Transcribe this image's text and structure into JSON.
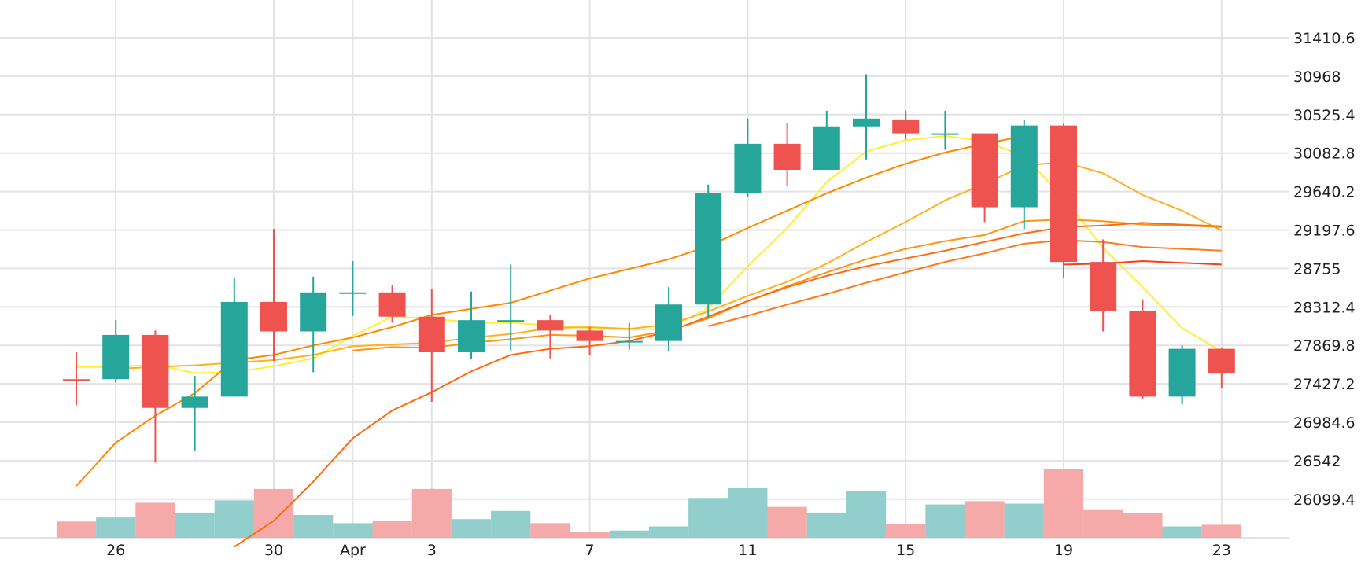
{
  "chart_data": {
    "type": "candlestick",
    "x": [
      "Mar 25",
      "Mar 26",
      "Mar 27",
      "Mar 28",
      "Mar 29",
      "Mar 30",
      "Mar 31",
      "Apr 1",
      "Apr 2",
      "Apr 3",
      "Apr 4",
      "Apr 5",
      "Apr 6",
      "Apr 7",
      "Apr 8",
      "Apr 9",
      "Apr 10",
      "Apr 11",
      "Apr 12",
      "Apr 13",
      "Apr 14",
      "Apr 15",
      "Apr 16",
      "Apr 17",
      "Apr 18",
      "Apr 19",
      "Apr 20",
      "Apr 21",
      "Apr 22",
      "Apr 23"
    ],
    "ohlc": [
      [
        27480,
        27790,
        27180,
        27470
      ],
      [
        27480,
        28160,
        27440,
        27990
      ],
      [
        27990,
        28040,
        26520,
        27150
      ],
      [
        27150,
        27520,
        26650,
        27280
      ],
      [
        27280,
        28640,
        27280,
        28370
      ],
      [
        28370,
        29210,
        27690,
        28030
      ],
      [
        28030,
        28660,
        27560,
        28480
      ],
      [
        28480,
        28840,
        28210,
        28480
      ],
      [
        28480,
        28560,
        28130,
        28200
      ],
      [
        28200,
        28520,
        27220,
        27790
      ],
      [
        27790,
        28490,
        27710,
        28160
      ],
      [
        28160,
        28800,
        27810,
        28160
      ],
      [
        28160,
        28220,
        27720,
        28040
      ],
      [
        28040,
        28080,
        27760,
        27920
      ],
      [
        27920,
        28130,
        27820,
        27920
      ],
      [
        27920,
        28540,
        27800,
        28340
      ],
      [
        28340,
        29720,
        28190,
        29620
      ],
      [
        29620,
        30480,
        29580,
        30190
      ],
      [
        30190,
        30430,
        29700,
        29890
      ],
      [
        29890,
        30570,
        29890,
        30390
      ],
      [
        30390,
        30990,
        30010,
        30480
      ],
      [
        30470,
        30570,
        30240,
        30310
      ],
      [
        30300,
        30570,
        30120,
        30310
      ],
      [
        30310,
        30310,
        29290,
        29460
      ],
      [
        29460,
        30470,
        29210,
        30400
      ],
      [
        30400,
        30420,
        28650,
        28830
      ],
      [
        28830,
        29090,
        28030,
        28270
      ],
      [
        28270,
        28400,
        27250,
        27280
      ],
      [
        27280,
        27870,
        27190,
        27830
      ],
      [
        27830,
        27840,
        27380,
        27550
      ]
    ],
    "volume": [
      20,
      25,
      43,
      31,
      46,
      60,
      28,
      18,
      21,
      60,
      23,
      33,
      18,
      7,
      9,
      14,
      49,
      61,
      38,
      31,
      57,
      17,
      41,
      45,
      42,
      85,
      35,
      30,
      14,
      16
    ],
    "moving_averages": [
      {
        "color": "#ffee33",
        "values": [
          27620,
          27620,
          27650,
          27550,
          27560,
          27630,
          27720,
          27980,
          28200,
          28180,
          28130,
          28130,
          28100,
          28070,
          28050,
          28060,
          28300,
          28780,
          29220,
          29750,
          30100,
          30230,
          30280,
          30220,
          30050,
          29570,
          28990,
          28540,
          28070,
          27800
        ]
      },
      {
        "color": "#ffb21e",
        "values": [
          null,
          27600,
          27620,
          27640,
          27670,
          27700,
          27760,
          27860,
          27880,
          27900,
          27960,
          28000,
          28070,
          28080,
          28060,
          28110,
          28260,
          28440,
          28600,
          28810,
          29060,
          29290,
          29540,
          29730,
          29940,
          29980,
          29850,
          29600,
          29420,
          29190
        ]
      },
      {
        "color": "#ff9514",
        "values": [
          null,
          null,
          null,
          null,
          null,
          null,
          null,
          27810,
          27850,
          27840,
          27900,
          27940,
          27990,
          27980,
          27960,
          28040,
          28180,
          28380,
          28550,
          28710,
          28860,
          28980,
          29070,
          29140,
          29300,
          29320,
          29300,
          29260,
          29250,
          29230
        ]
      },
      {
        "color": "#ff7b1b",
        "values": [
          null,
          null,
          null,
          null,
          null,
          null,
          null,
          null,
          null,
          null,
          null,
          null,
          null,
          null,
          null,
          null,
          28090,
          28210,
          28340,
          28460,
          28590,
          28710,
          28830,
          28930,
          29040,
          29080,
          29060,
          29000,
          28980,
          28960
        ]
      },
      {
        "color": "#ff3d15",
        "values": [
          null,
          null,
          null,
          null,
          null,
          null,
          null,
          null,
          null,
          null,
          null,
          null,
          null,
          null,
          null,
          null,
          null,
          null,
          null,
          null,
          null,
          null,
          null,
          null,
          null,
          28800,
          28810,
          28840,
          28820,
          28800
        ]
      },
      {
        "color": "#ff8a00",
        "values": [
          26250,
          26750,
          27060,
          27320,
          27700,
          27760,
          27870,
          27960,
          28080,
          28220,
          28290,
          28360,
          28500,
          28640,
          28750,
          28860,
          29010,
          29220,
          29420,
          29620,
          29800,
          29960,
          30090,
          30190,
          30280,
          null,
          null,
          null,
          null,
          null
        ]
      },
      {
        "color": "#ff6a10",
        "values": [
          null,
          null,
          null,
          null,
          25550,
          25850,
          26300,
          26800,
          27120,
          27330,
          27570,
          27760,
          27830,
          27860,
          27920,
          28030,
          28200,
          28380,
          28540,
          28670,
          28780,
          28870,
          28960,
          29060,
          29160,
          29230,
          29250,
          29280,
          29260,
          29240
        ]
      }
    ],
    "y_ticks": [
      "31410.6",
      "30968",
      "30525.4",
      "30082.8",
      "29640.2",
      "29197.6",
      "28755",
      "28312.4",
      "27869.8",
      "27427.2",
      "26984.6",
      "26542",
      "26099.4"
    ],
    "x_ticks": [
      {
        "index": 1,
        "label": "26"
      },
      {
        "index": 5,
        "label": "30"
      },
      {
        "index": 7,
        "label": "Apr"
      },
      {
        "index": 9,
        "label": "3"
      },
      {
        "index": 13,
        "label": "7"
      },
      {
        "index": 17,
        "label": "11"
      },
      {
        "index": 21,
        "label": "15"
      },
      {
        "index": 25,
        "label": "19"
      },
      {
        "index": 29,
        "label": "23"
      }
    ],
    "ylim": [
      25657,
      31853
    ],
    "grid": true,
    "up_color": "#26a69a",
    "down_color": "#ef5350",
    "up_volume_color": "#92cfcc",
    "down_volume_color": "#f5a9a8"
  }
}
